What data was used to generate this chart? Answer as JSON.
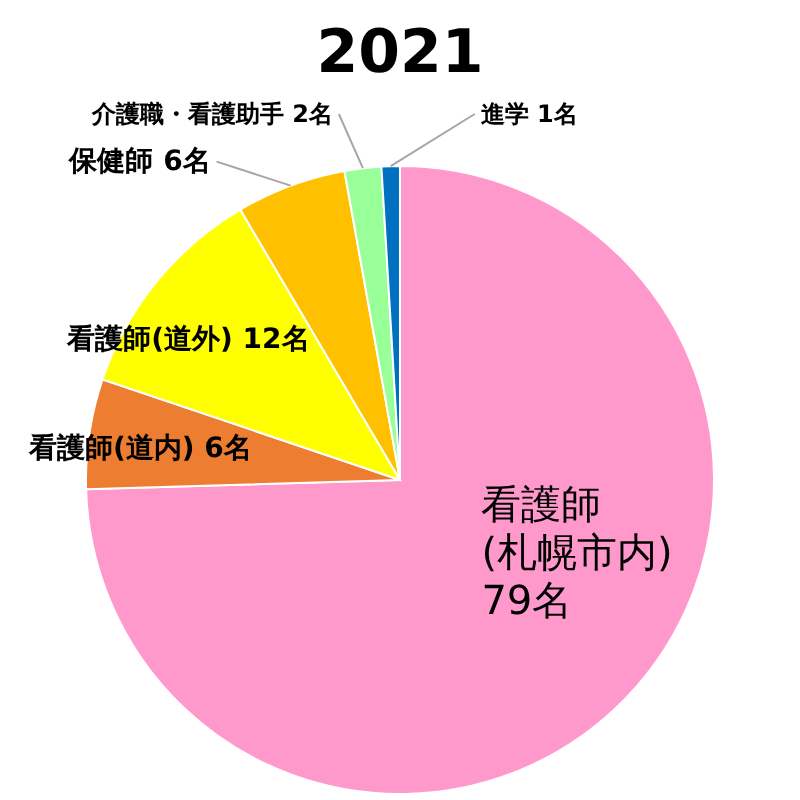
{
  "chart_data": {
    "type": "pie",
    "title": "2021",
    "categories": [
      "看護師(札幌市内)",
      "看護師(道内)",
      "看護師(道外)",
      "保健師",
      "介護職・看護助手",
      "進学"
    ],
    "values": [
      79,
      6,
      12,
      6,
      2,
      1
    ],
    "value_labels": [
      "79名",
      "6名",
      "12名",
      "6名",
      "2名",
      "1名"
    ],
    "colors": [
      "#ff99cc",
      "#ed7d31",
      "#ffff00",
      "#ffc000",
      "#99ff99",
      "#0070c0"
    ]
  }
}
